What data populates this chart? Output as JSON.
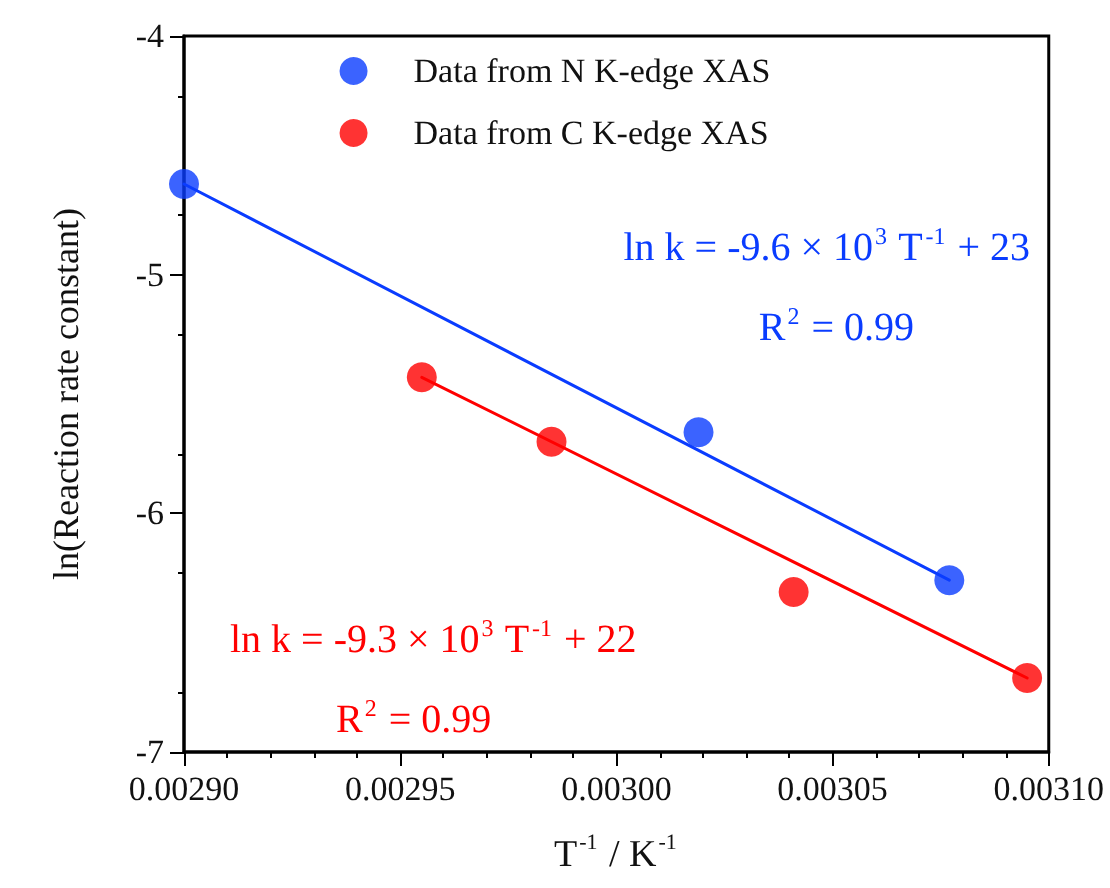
{
  "chart_data": {
    "type": "scatter",
    "xlabel": "T$^{-1}$ / K$^{-1}$",
    "ylabel": "ln(Reaction rate constant)",
    "series": [
      {
        "name": "Data from N K-edge XAS",
        "color": "#0a3cff",
        "x": [
          0.0029,
          0.003019,
          0.003077
        ],
        "values": [
          -4.62,
          -5.66,
          -6.28
        ]
      },
      {
        "name": "Data from C K-edge XAS",
        "color": "#ff0000",
        "x": [
          0.002955,
          0.002985,
          0.003041,
          0.003095
        ],
        "values": [
          -5.43,
          -5.7,
          -6.33,
          -6.69
        ]
      },
      {
        "type": "line",
        "color": "#0a3cff",
        "x": [
          0.0029,
          0.003077
        ],
        "values": [
          -4.62,
          -6.28
        ],
        "marker": "none"
      },
      {
        "type": "line",
        "color": "#ff0000",
        "x": [
          0.002955,
          0.003095
        ],
        "values": [
          -5.43,
          -6.69
        ],
        "marker": "none"
      }
    ],
    "annotations": [
      "ln k = -9.6 × 10$^{3}$ T$^{-1}$ + 23",
      "R$^{2}$ = 0.99",
      "ln k = -9.3 × 10$^{3}$ T$^{-1}$ + 22",
      "R$^{2}$ = 0.99"
    ],
    "xlim": [
      0.0029,
      0.0031
    ],
    "xticks": [
      {
        "value": 0.0029,
        "label": "0.00290"
      },
      {
        "value": 0.00295,
        "label": "0.00295"
      },
      {
        "value": 0.003,
        "label": "0.00300"
      },
      {
        "value": 0.00305,
        "label": "0.00305"
      },
      {
        "value": 0.0031,
        "label": "0.00310"
      }
    ],
    "ylim": [
      -7,
      -4
    ],
    "yticks": [
      -7,
      -6,
      -5,
      -4
    ],
    "marker": "circle",
    "grid": false,
    "legend": "top"
  }
}
